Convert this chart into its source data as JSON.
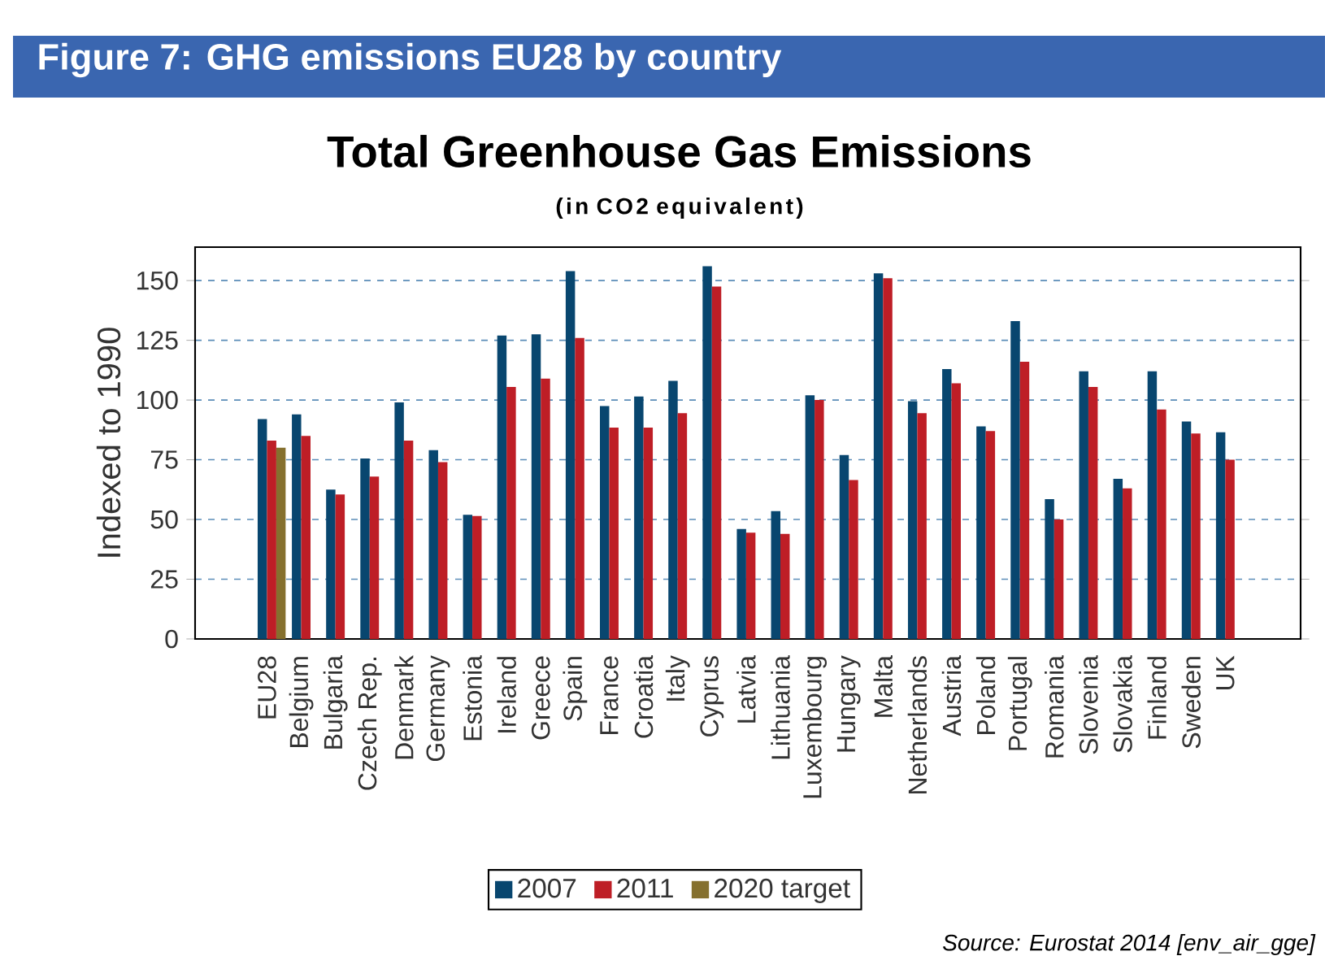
{
  "chart_data": {
    "type": "bar",
    "title": "Total Greenhouse Gas Emissions",
    "subtitle": "(in CO2 equivalent)",
    "ylabel": "Indexed to 1990",
    "annotations": [
      "Figure 7:  GHG emissions EU28 by country",
      "Source: Eurostat 2014 [env_air_gge]"
    ],
    "categories": [
      "EU28",
      "Belgium",
      "Bulgaria",
      "Czech Rep.",
      "Denmark",
      "Germany",
      "Estonia",
      "Ireland",
      "Greece",
      "Spain",
      "France",
      "Croatia",
      "Italy",
      "Cyprus",
      "Latvia",
      "Lithuania",
      "Luxembourg",
      "Hungary",
      "Malta",
      "Netherlands",
      "Austria",
      "Poland",
      "Portugal",
      "Romania",
      "Slovenia",
      "Slovakia",
      "Finland",
      "Sweden",
      "UK"
    ],
    "series": [
      {
        "name": "2007",
        "color": "#08466f",
        "values": [
          92,
          94,
          62.5,
          75.5,
          99,
          79,
          52,
          127,
          127.5,
          154,
          97.5,
          101.5,
          108,
          156,
          46,
          53.5,
          102,
          77,
          153,
          99.5,
          113,
          89,
          133,
          58.5,
          112,
          67,
          112,
          91,
          86.5
        ]
      },
      {
        "name": "2011",
        "color": "#be1e26",
        "values": [
          83,
          85,
          60.5,
          68,
          83,
          74,
          51.5,
          105.5,
          109,
          126,
          88.5,
          88.5,
          94.5,
          147.5,
          44.5,
          44,
          100,
          66.5,
          151,
          94.5,
          107,
          87,
          116,
          50,
          105.5,
          63,
          96,
          86,
          75
        ]
      },
      {
        "name": "2020 target",
        "color": "#85702e",
        "values": [
          80,
          null,
          null,
          null,
          null,
          null,
          null,
          null,
          null,
          null,
          null,
          null,
          null,
          null,
          null,
          null,
          null,
          null,
          null,
          null,
          null,
          null,
          null,
          null,
          null,
          null,
          null,
          null,
          null
        ]
      }
    ],
    "ylim": [
      0,
      164
    ],
    "yticks": [
      0,
      25,
      50,
      75,
      100,
      125,
      150
    ],
    "grid": "y",
    "legend": "bottom"
  }
}
